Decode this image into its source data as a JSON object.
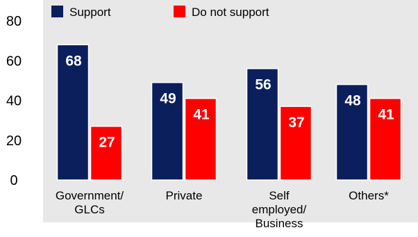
{
  "colors": {
    "support": "#0a1f5c",
    "do_not_support": "#ff0000",
    "plot_background": "#e8e8e8",
    "page_background": "#ffffff"
  },
  "chart_data": {
    "type": "bar",
    "title": "",
    "xlabel": "",
    "ylabel": "",
    "ylim": [
      0,
      80
    ],
    "yticks": [
      0,
      20,
      40,
      60,
      80
    ],
    "grid": false,
    "legend_position": "top-left",
    "categories": [
      [
        "Government/",
        "GLCs"
      ],
      [
        "Private"
      ],
      [
        "Self",
        "employed/",
        "Business"
      ],
      [
        "Others*"
      ]
    ],
    "series": [
      {
        "name": "Support",
        "color": "#0a1f5c",
        "values": [
          68,
          49,
          56,
          48
        ]
      },
      {
        "name": "Do not support",
        "color": "#ff0000",
        "values": [
          27,
          41,
          37,
          41
        ]
      }
    ]
  }
}
